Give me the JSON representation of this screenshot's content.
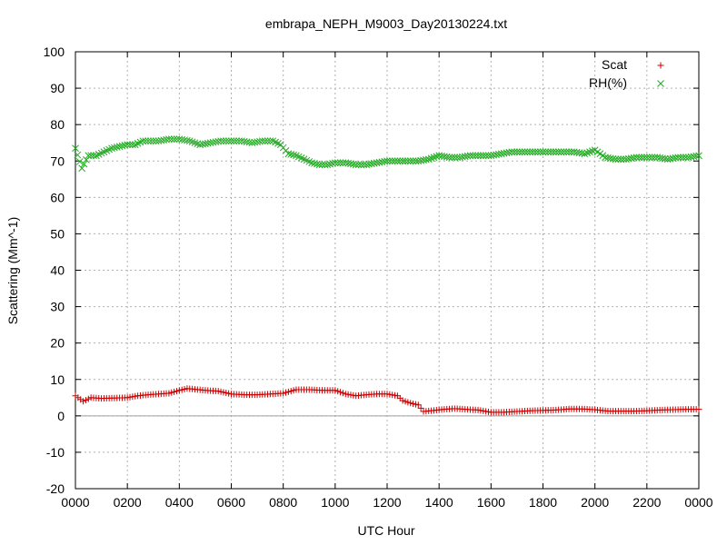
{
  "chart_data": {
    "type": "scatter",
    "title": "embrapa_NEPH_M9003_Day20130224.txt",
    "xlabel": "UTC Hour",
    "ylabel": "Scattering (Mm^-1)",
    "xlim": [
      0,
      2400
    ],
    "ylim": [
      -20,
      100
    ],
    "x_ticks": [
      "0000",
      "0200",
      "0400",
      "0600",
      "0800",
      "1000",
      "1200",
      "1400",
      "1600",
      "1800",
      "2000",
      "2200",
      "0000"
    ],
    "y_ticks": [
      "-20",
      "-10",
      "0",
      "10",
      "20",
      "30",
      "40",
      "50",
      "60",
      "70",
      "80",
      "90",
      "100"
    ],
    "grid": true,
    "legend_position": "top-right",
    "series": [
      {
        "name": "Scat",
        "marker": "+",
        "color": "#cc0000",
        "points": [
          [
            0,
            5.5
          ],
          [
            30,
            4.0
          ],
          [
            60,
            5.0
          ],
          [
            100,
            4.8
          ],
          [
            150,
            4.9
          ],
          [
            200,
            5.0
          ],
          [
            240,
            5.5
          ],
          [
            280,
            5.8
          ],
          [
            320,
            6.0
          ],
          [
            360,
            6.2
          ],
          [
            400,
            7.0
          ],
          [
            430,
            7.5
          ],
          [
            460,
            7.3
          ],
          [
            500,
            7.0
          ],
          [
            550,
            6.8
          ],
          [
            600,
            6.0
          ],
          [
            650,
            5.8
          ],
          [
            700,
            5.8
          ],
          [
            750,
            6.0
          ],
          [
            800,
            6.2
          ],
          [
            850,
            7.2
          ],
          [
            900,
            7.2
          ],
          [
            950,
            7.0
          ],
          [
            1000,
            7.0
          ],
          [
            1040,
            6.0
          ],
          [
            1080,
            5.5
          ],
          [
            1120,
            5.8
          ],
          [
            1160,
            6.0
          ],
          [
            1200,
            6.0
          ],
          [
            1240,
            5.5
          ],
          [
            1260,
            4.2
          ],
          [
            1290,
            3.5
          ],
          [
            1320,
            3.0
          ],
          [
            1340,
            1.2
          ],
          [
            1380,
            1.5
          ],
          [
            1420,
            1.8
          ],
          [
            1460,
            2.0
          ],
          [
            1500,
            1.8
          ],
          [
            1550,
            1.6
          ],
          [
            1600,
            1.0
          ],
          [
            1650,
            1.0
          ],
          [
            1700,
            1.2
          ],
          [
            1750,
            1.4
          ],
          [
            1800,
            1.5
          ],
          [
            1850,
            1.6
          ],
          [
            1900,
            1.9
          ],
          [
            1950,
            1.9
          ],
          [
            2000,
            1.7
          ],
          [
            2050,
            1.3
          ],
          [
            2100,
            1.3
          ],
          [
            2150,
            1.3
          ],
          [
            2200,
            1.4
          ],
          [
            2250,
            1.6
          ],
          [
            2300,
            1.7
          ],
          [
            2350,
            1.8
          ],
          [
            2400,
            1.8
          ]
        ]
      },
      {
        "name": "RH(%)",
        "marker": "x",
        "color": "#22aa22",
        "points": [
          [
            0,
            73.5
          ],
          [
            25,
            68.0
          ],
          [
            50,
            71.5
          ],
          [
            80,
            71.5
          ],
          [
            110,
            72.5
          ],
          [
            140,
            73.5
          ],
          [
            170,
            74.0
          ],
          [
            200,
            74.5
          ],
          [
            230,
            74.5
          ],
          [
            260,
            75.5
          ],
          [
            290,
            75.5
          ],
          [
            320,
            75.5
          ],
          [
            360,
            76.0
          ],
          [
            400,
            76.0
          ],
          [
            440,
            75.5
          ],
          [
            480,
            74.5
          ],
          [
            520,
            75.0
          ],
          [
            560,
            75.5
          ],
          [
            600,
            75.5
          ],
          [
            640,
            75.5
          ],
          [
            680,
            75.0
          ],
          [
            720,
            75.5
          ],
          [
            760,
            75.5
          ],
          [
            790,
            74.5
          ],
          [
            820,
            72.0
          ],
          [
            850,
            71.5
          ],
          [
            880,
            70.5
          ],
          [
            910,
            69.5
          ],
          [
            940,
            69.0
          ],
          [
            970,
            69.0
          ],
          [
            1000,
            69.5
          ],
          [
            1040,
            69.5
          ],
          [
            1080,
            69.0
          ],
          [
            1120,
            69.0
          ],
          [
            1160,
            69.5
          ],
          [
            1200,
            70.0
          ],
          [
            1240,
            70.0
          ],
          [
            1280,
            70.0
          ],
          [
            1320,
            70.0
          ],
          [
            1360,
            70.5
          ],
          [
            1400,
            71.5
          ],
          [
            1440,
            71.0
          ],
          [
            1480,
            71.0
          ],
          [
            1520,
            71.5
          ],
          [
            1560,
            71.5
          ],
          [
            1600,
            71.5
          ],
          [
            1640,
            72.0
          ],
          [
            1680,
            72.5
          ],
          [
            1720,
            72.5
          ],
          [
            1760,
            72.5
          ],
          [
            1800,
            72.5
          ],
          [
            1840,
            72.5
          ],
          [
            1880,
            72.5
          ],
          [
            1920,
            72.5
          ],
          [
            1960,
            72.0
          ],
          [
            2000,
            73.0
          ],
          [
            2040,
            71.0
          ],
          [
            2080,
            70.5
          ],
          [
            2120,
            70.5
          ],
          [
            2160,
            71.0
          ],
          [
            2200,
            71.0
          ],
          [
            2240,
            71.0
          ],
          [
            2280,
            70.5
          ],
          [
            2320,
            71.0
          ],
          [
            2360,
            71.0
          ],
          [
            2400,
            71.5
          ]
        ]
      }
    ]
  }
}
